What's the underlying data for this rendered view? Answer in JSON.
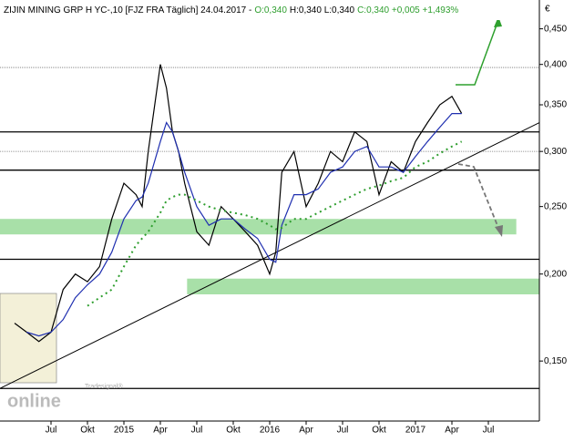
{
  "chart_data": {
    "type": "line",
    "header": [
      {
        "text": "ZIJIN MINING GRP H YC-,10 [FJZ FRA  Täglich] 24.04.2017 -",
        "color": "#000000"
      },
      {
        "text": "O:0,340",
        "color": "#2e9e2e"
      },
      {
        "text": "H:0,340 L:0,340",
        "color": "#000000"
      },
      {
        "text": "C:0,340 +0,005 +1,493%",
        "color": "#2e9e2e"
      }
    ],
    "currency": "€",
    "logo": {
      "small": "Tradesignal®",
      "big": "online"
    },
    "log_scale": true,
    "xlim": [
      1.8,
      46.2
    ],
    "ylim": [
      0.123,
      0.495
    ],
    "yticks": [
      {
        "value": 0.15,
        "label": "0,150"
      },
      {
        "value": 0.2,
        "label": "0,200"
      },
      {
        "value": 0.25,
        "label": "0,250"
      },
      {
        "value": 0.3,
        "label": "0,300"
      },
      {
        "value": 0.35,
        "label": "0,350"
      },
      {
        "value": 0.4,
        "label": "0,400"
      },
      {
        "value": 0.45,
        "label": "0,450"
      }
    ],
    "xticks": [
      {
        "value": 6,
        "label": "Jul"
      },
      {
        "value": 9,
        "label": "Okt"
      },
      {
        "value": 12,
        "label": "2015"
      },
      {
        "value": 15,
        "label": "Apr"
      },
      {
        "value": 18,
        "label": "Jul"
      },
      {
        "value": 21,
        "label": "Okt"
      },
      {
        "value": 24,
        "label": "2016"
      },
      {
        "value": 27,
        "label": "Apr"
      },
      {
        "value": 30,
        "label": "Jul"
      },
      {
        "value": 33,
        "label": "Okt"
      },
      {
        "value": 36,
        "label": "2017"
      },
      {
        "value": 39,
        "label": "Apr"
      },
      {
        "value": 42,
        "label": "Jul"
      }
    ],
    "x": [
      3,
      4,
      5,
      6,
      7,
      8,
      9,
      10,
      11,
      12,
      13,
      13.5,
      14,
      15,
      15.5,
      16,
      16.5,
      17,
      18,
      19,
      20,
      21,
      22,
      23,
      24,
      24.5,
      25,
      26,
      27,
      28,
      29,
      30,
      31,
      32,
      33,
      34,
      35,
      36,
      37,
      38,
      39,
      39.8
    ],
    "series": [
      {
        "name": "Kurs",
        "color": "#000000",
        "dash": false,
        "values": [
          0.17,
          0.165,
          0.16,
          0.165,
          0.19,
          0.2,
          0.195,
          0.205,
          0.24,
          0.27,
          0.26,
          0.25,
          0.3,
          0.4,
          0.37,
          0.32,
          0.3,
          0.27,
          0.23,
          0.22,
          0.25,
          0.24,
          0.23,
          0.22,
          0.2,
          0.215,
          0.28,
          0.3,
          0.25,
          0.27,
          0.3,
          0.29,
          0.32,
          0.31,
          0.26,
          0.29,
          0.28,
          0.31,
          0.33,
          0.35,
          0.36,
          0.34
        ]
      },
      {
        "name": "MA kurz",
        "color": "#1f2fb0",
        "dash": false,
        "values": [
          null,
          0.165,
          0.163,
          0.165,
          0.172,
          0.185,
          0.193,
          0.2,
          0.215,
          0.24,
          0.255,
          0.258,
          0.27,
          0.31,
          0.33,
          0.32,
          0.3,
          0.28,
          0.25,
          0.235,
          0.24,
          0.24,
          0.232,
          0.225,
          0.21,
          0.208,
          0.235,
          0.26,
          0.26,
          0.265,
          0.28,
          0.285,
          0.3,
          0.305,
          0.285,
          0.285,
          0.28,
          0.295,
          0.31,
          0.325,
          0.34,
          0.34
        ]
      },
      {
        "name": "MA lang",
        "color": "#2e9e2e",
        "dash": true,
        "values": [
          null,
          null,
          null,
          null,
          null,
          null,
          0.18,
          0.185,
          0.19,
          0.205,
          0.22,
          0.225,
          0.23,
          0.245,
          0.255,
          0.258,
          0.26,
          0.26,
          0.255,
          0.25,
          0.247,
          0.245,
          0.243,
          0.24,
          0.235,
          0.232,
          0.233,
          0.24,
          0.24,
          0.245,
          0.25,
          0.255,
          0.26,
          0.265,
          0.268,
          0.272,
          0.275,
          0.285,
          0.29,
          0.298,
          0.305,
          0.31
        ]
      }
    ],
    "levels": [
      {
        "value": 0.396,
        "dash": true
      },
      {
        "value": 0.32,
        "dash": false
      },
      {
        "value": 0.3,
        "dash": true
      },
      {
        "value": 0.282,
        "dash": false
      },
      {
        "value": 0.21,
        "dash": false
      },
      {
        "value": 0.137,
        "dash": false
      }
    ],
    "zones": [
      {
        "from": 0.228,
        "to": 0.24,
        "x": [
          1.8,
          44.3
        ]
      },
      {
        "from": 0.187,
        "to": 0.197,
        "x": [
          17.2,
          46.2
        ]
      }
    ],
    "trendline": {
      "x": [
        1.8,
        46.2
      ],
      "y": [
        0.137,
        0.33
      ]
    }
  }
}
